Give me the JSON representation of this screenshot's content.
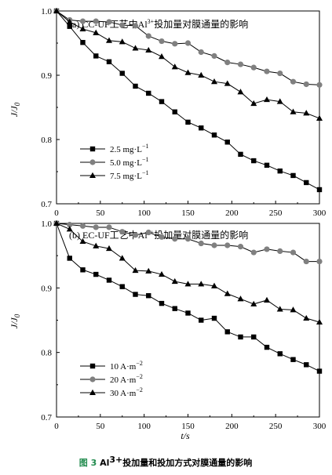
{
  "chart_data": [
    {
      "type": "line",
      "title_prefix": "(a) CC-UF工艺中Al",
      "title_sup": "3+",
      "title_suffix": "投加量对膜通量的影响",
      "ylabel": "J/J",
      "ylabel_sub": "0",
      "xlabel": "",
      "xlim": [
        0,
        300
      ],
      "ylim": [
        0.7,
        1.0
      ],
      "xticks": [
        "0",
        "50",
        "100",
        "150",
        "200",
        "250",
        "300"
      ],
      "yticks": [
        "0.7",
        "0.8",
        "0.9",
        "1.0"
      ],
      "legend_position": "lower-left",
      "series": [
        {
          "name": "2.5 mg·L",
          "name_sup": "−1",
          "marker": "square",
          "color": "#000000",
          "x": [
            0,
            15,
            30,
            45,
            60,
            75,
            90,
            105,
            120,
            135,
            150,
            165,
            180,
            195,
            210,
            225,
            240,
            255,
            270,
            285,
            300
          ],
          "y": [
            1.0,
            0.976,
            0.951,
            0.93,
            0.921,
            0.903,
            0.883,
            0.872,
            0.859,
            0.843,
            0.827,
            0.818,
            0.807,
            0.796,
            0.777,
            0.767,
            0.76,
            0.751,
            0.744,
            0.733,
            0.722
          ]
        },
        {
          "name": "5.0 mg·L",
          "name_sup": "−1",
          "marker": "circle",
          "color": "#808080",
          "x": [
            0,
            15,
            30,
            45,
            60,
            75,
            90,
            105,
            120,
            135,
            150,
            165,
            180,
            195,
            210,
            225,
            240,
            255,
            270,
            285,
            300
          ],
          "y": [
            1.0,
            0.986,
            0.984,
            0.984,
            0.983,
            0.978,
            0.977,
            0.961,
            0.953,
            0.949,
            0.95,
            0.936,
            0.93,
            0.92,
            0.917,
            0.912,
            0.906,
            0.903,
            0.89,
            0.886,
            0.885
          ]
        },
        {
          "name": "7.5 mg·L",
          "name_sup": "−1",
          "marker": "triangle",
          "color": "#000000",
          "x": [
            0,
            15,
            30,
            45,
            60,
            75,
            90,
            105,
            120,
            135,
            150,
            165,
            180,
            195,
            210,
            225,
            240,
            255,
            270,
            285,
            300
          ],
          "y": [
            1.0,
            0.983,
            0.972,
            0.966,
            0.954,
            0.952,
            0.942,
            0.939,
            0.929,
            0.913,
            0.904,
            0.9,
            0.89,
            0.887,
            0.874,
            0.856,
            0.862,
            0.859,
            0.843,
            0.841,
            0.833
          ]
        }
      ]
    },
    {
      "type": "line",
      "title_prefix": "(b) EC-UF工艺中Al",
      "title_sup": "3+",
      "title_suffix": "投加量对膜通量的影响",
      "ylabel": "J/J",
      "ylabel_sub": "0",
      "xlabel": "t/s",
      "xlim": [
        0,
        300
      ],
      "ylim": [
        0.7,
        1.0
      ],
      "xticks": [
        "0",
        "50",
        "100",
        "150",
        "200",
        "250",
        "300"
      ],
      "yticks": [
        "0.7",
        "0.8",
        "0.9",
        "1.0"
      ],
      "legend_position": "lower-left",
      "series": [
        {
          "name": "10 A·m",
          "name_sup": "−2",
          "marker": "square",
          "color": "#000000",
          "x": [
            0,
            15,
            30,
            45,
            60,
            75,
            90,
            105,
            120,
            135,
            150,
            165,
            180,
            195,
            210,
            225,
            240,
            255,
            270,
            285,
            300
          ],
          "y": [
            1.0,
            0.946,
            0.928,
            0.921,
            0.912,
            0.902,
            0.89,
            0.888,
            0.876,
            0.868,
            0.861,
            0.85,
            0.853,
            0.832,
            0.824,
            0.824,
            0.808,
            0.798,
            0.789,
            0.781,
            0.771
          ]
        },
        {
          "name": "20 A·m",
          "name_sup": "−2",
          "marker": "circle",
          "color": "#808080",
          "x": [
            0,
            15,
            30,
            45,
            60,
            75,
            90,
            105,
            120,
            135,
            150,
            165,
            180,
            195,
            210,
            225,
            240,
            255,
            270,
            285,
            300
          ],
          "y": [
            1.0,
            0.998,
            0.996,
            0.994,
            0.994,
            0.987,
            0.982,
            0.986,
            0.979,
            0.976,
            0.976,
            0.969,
            0.966,
            0.966,
            0.964,
            0.955,
            0.96,
            0.957,
            0.955,
            0.941,
            0.941
          ]
        },
        {
          "name": "30 A·m",
          "name_sup": "−2",
          "marker": "triangle",
          "color": "#000000",
          "x": [
            0,
            15,
            30,
            45,
            60,
            75,
            90,
            105,
            120,
            135,
            150,
            165,
            180,
            195,
            210,
            225,
            240,
            255,
            270,
            285,
            300
          ],
          "y": [
            1.0,
            0.991,
            0.972,
            0.965,
            0.961,
            0.946,
            0.927,
            0.926,
            0.921,
            0.91,
            0.906,
            0.906,
            0.903,
            0.891,
            0.883,
            0.875,
            0.881,
            0.867,
            0.866,
            0.853,
            0.847
          ]
        }
      ]
    }
  ],
  "caption": {
    "number": "图 3",
    "text_prefix": " Al",
    "text_sup": "3+",
    "text_suffix": "投加量和投加方式对膜通量的影响"
  }
}
